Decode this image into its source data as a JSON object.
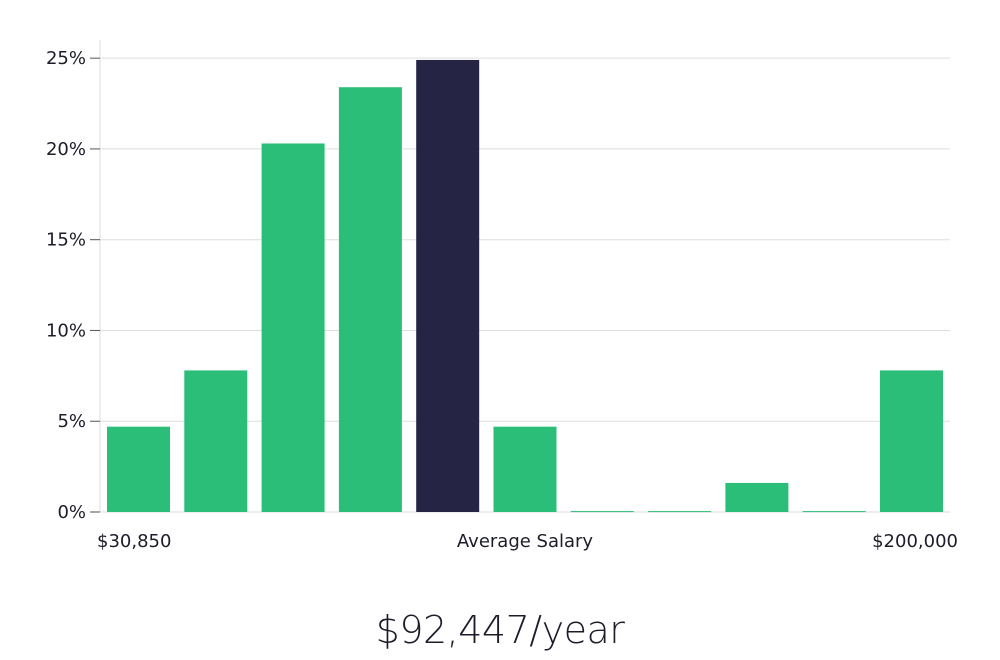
{
  "chart_data": {
    "type": "bar",
    "categories": [
      "1",
      "2",
      "3",
      "4",
      "5",
      "6",
      "7",
      "8",
      "9",
      "10",
      "11"
    ],
    "values": [
      4.7,
      7.8,
      20.3,
      23.4,
      24.9,
      4.7,
      0.05,
      0.05,
      1.6,
      0.05,
      7.8
    ],
    "highlight_index": 4,
    "ylim": [
      0,
      26
    ],
    "yticks": [
      0,
      5,
      10,
      15,
      20,
      25
    ],
    "ytick_labels": [
      "0%",
      "5%",
      "10%",
      "15%",
      "20%",
      "25%"
    ],
    "x_min_label": "$30,850",
    "x_center_label": "Average Salary",
    "x_max_label": "$200,000",
    "grid": true,
    "colors": {
      "bar": "#2bbe78",
      "highlight": "#262445",
      "grid": "#dddddd",
      "text": "#1c1c2b"
    }
  },
  "summary": {
    "average_salary": "$92,447/year"
  }
}
